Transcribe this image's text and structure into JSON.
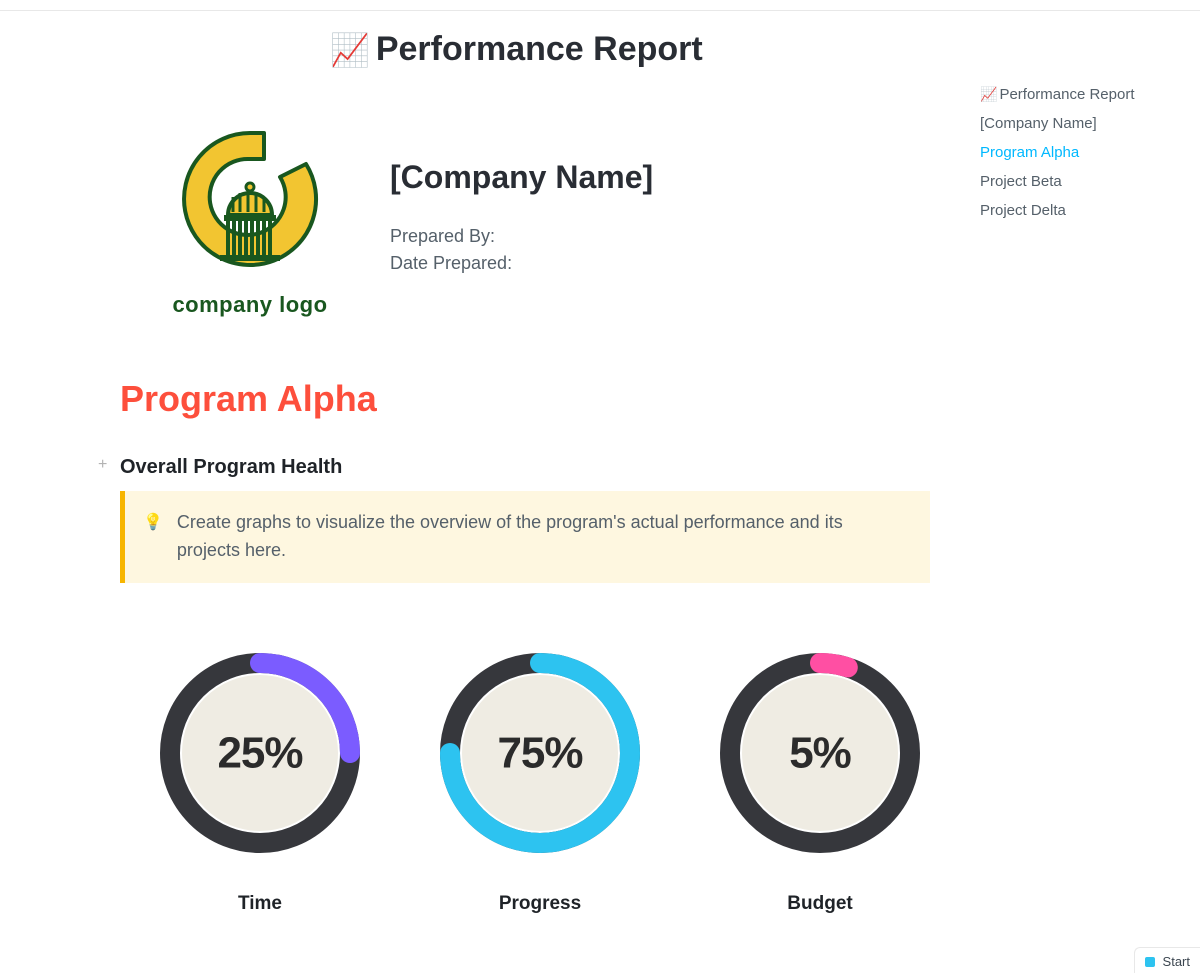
{
  "page": {
    "title": "Performance Report",
    "icon": "📈"
  },
  "company": {
    "name": "[Company Name]",
    "prepared_by_label": "Prepared By:",
    "date_prepared_label": "Date Prepared:",
    "logo_caption": "company logo",
    "logo_colors": {
      "ring": "#f2c531",
      "outline": "#19571f",
      "building": "#19571f"
    }
  },
  "outline": {
    "items": [
      {
        "label": "Performance Report",
        "icon": "📈",
        "active": false
      },
      {
        "label": "[Company Name]",
        "active": false
      },
      {
        "label": "Program Alpha",
        "active": true
      },
      {
        "label": "Project Beta",
        "active": false
      },
      {
        "label": "Project Delta",
        "active": false
      }
    ]
  },
  "program": {
    "title": "Program Alpha",
    "title_color": "#fd4f3c",
    "health_label": "Overall Program Health",
    "callout": {
      "text": "Create graphs to visualize the overview of the program's actual performance and its projects here.",
      "bulb": "💡",
      "bg": "#fef7e0",
      "border": "#f7b500"
    }
  },
  "donuts": {
    "type": "donut",
    "ring_bg": "#36373c",
    "inner_fill": "#efece3",
    "stroke_width": 20,
    "radius": 90,
    "start_angle_deg": 0,
    "text_color": "#2b2b2b",
    "font_size_pt": 33,
    "items": [
      {
        "label": "Time",
        "percent": 25,
        "accent": "#7b5cff"
      },
      {
        "label": "Progress",
        "percent": 75,
        "accent": "#2dc3f0"
      },
      {
        "label": "Budget",
        "percent": 5,
        "accent": "#ff4fa3"
      }
    ]
  },
  "footer": {
    "start_label": "Start",
    "start_color": "#2dc3f0"
  }
}
